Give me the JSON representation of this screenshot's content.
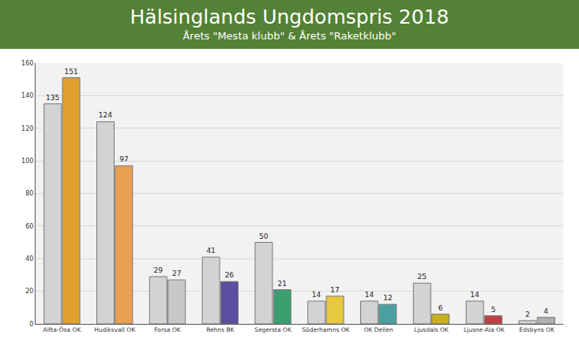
{
  "chart_data": {
    "type": "bar",
    "title": "Hälsinglands Ungdomspris 2018",
    "subtitle": "Årets \"Mesta klubb\" & Årets \"Raketklubb\"",
    "categories": [
      "Alfta-Ösa OK",
      "Hudiksvall OK",
      "Forsa OK",
      "Rehns BK",
      "Segersta OK",
      "Söderhamns OK",
      "OK Dellen",
      "Ljusdals OK",
      "Ljusne-Ala OK",
      "Edsbyns OK"
    ],
    "series": [
      {
        "color": "#d3d3d3",
        "values": [
          135,
          124,
          29,
          41,
          50,
          14,
          14,
          25,
          14,
          2
        ]
      },
      {
        "colors": [
          "#e0a030",
          "#e8a050",
          "#c8c8c8",
          "#5a4fa0",
          "#3aa070",
          "#e8c840",
          "#4aa0a0",
          "#c8b020",
          "#c04040",
          "#b0b0b0"
        ],
        "values": [
          151,
          97,
          27,
          26,
          21,
          17,
          12,
          6,
          5,
          4
        ]
      }
    ],
    "ylim": [
      0,
      160
    ],
    "yticks": [
      0,
      20,
      40,
      60,
      80,
      100,
      120,
      140,
      160
    ],
    "grid": true,
    "data_labels": true
  }
}
